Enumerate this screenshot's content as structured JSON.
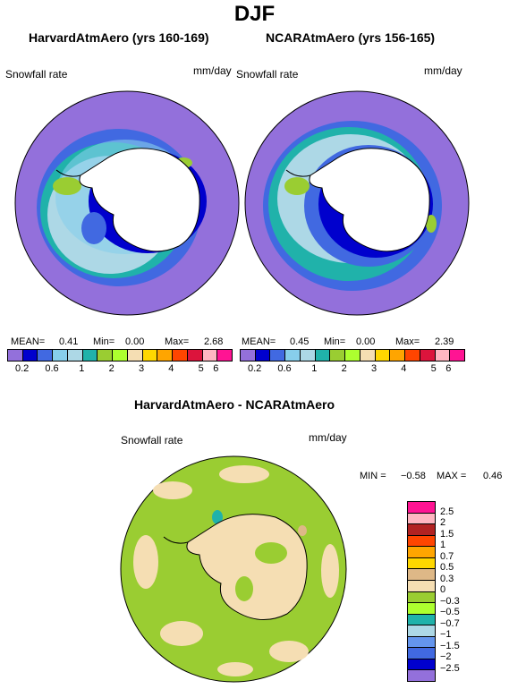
{
  "title": "DJF",
  "panels": [
    {
      "title": "HarvardAtmAero (yrs 160-169)",
      "var": "Snowfall rate",
      "units": "mm/day",
      "mean_label": "MEAN=",
      "mean": "0.41",
      "min_label": "Min=",
      "min": "0.00",
      "max_label": "Max=",
      "max": "2.68"
    },
    {
      "title": "NCARAtmAero (yrs 156-165)",
      "var": "Snowfall rate",
      "units": "mm/day",
      "mean_label": "MEAN=",
      "mean": "0.45",
      "min_label": "Min=",
      "min": "0.00",
      "max_label": "Max=",
      "max": "2.39"
    }
  ],
  "colorbar": {
    "colors": [
      "#9370db",
      "#0000cd",
      "#4169e1",
      "#87ceeb",
      "#add8e6",
      "#20b2aa",
      "#9acd32",
      "#adff2f",
      "#f5deb3",
      "#ffd700",
      "#ffa500",
      "#ff4500",
      "#dc143c",
      "#ffb6c1",
      "#ff1493"
    ],
    "ticks": [
      "0.2",
      "0.6",
      "1",
      "2",
      "3",
      "4",
      "5",
      "6"
    ]
  },
  "diff": {
    "title": "HarvardAtmAero - NCARAtmAero",
    "var": "Snowfall rate",
    "units": "mm/day",
    "min_label": "MIN =",
    "min": "−0.58",
    "max_label": "MAX =",
    "max": "0.46",
    "colors": [
      "#ff1493",
      "#ffb6c1",
      "#b22222",
      "#ff4500",
      "#ffa500",
      "#ffd700",
      "#deb887",
      "#f5deb3",
      "#9acd32",
      "#adff2f",
      "#20b2aa",
      "#add8e6",
      "#6495ed",
      "#4169e1",
      "#0000cd",
      "#9370db"
    ],
    "ticks": [
      "2.5",
      "2",
      "1.5",
      "1",
      "0.7",
      "0.5",
      "0.3",
      "0",
      "−0.3",
      "−0.5",
      "−0.7",
      "−1",
      "−1.5",
      "−2",
      "−2.5"
    ]
  },
  "map_colors": {
    "ocean_base": "#9370db",
    "deep_blue": "#0000cd",
    "blue": "#4169e1",
    "teal": "#20b2aa",
    "light_blue": "#add8e6",
    "diff_land": "#f5deb3",
    "diff_ocean": "#9acd32"
  }
}
